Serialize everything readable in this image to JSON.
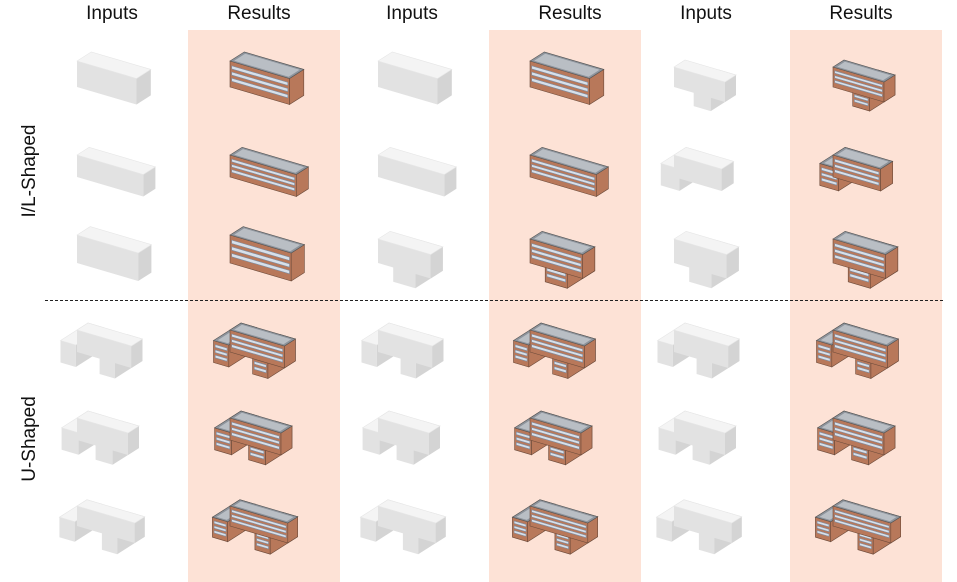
{
  "column_headers": [
    "Inputs",
    "Results",
    "Inputs",
    "Results",
    "Inputs",
    "Results"
  ],
  "row_groups": [
    {
      "label": "I/L-Shaped"
    },
    {
      "label": "U-Shaped"
    }
  ],
  "colors": {
    "results_panel": "#fde2d6",
    "mass_model_top": "#f4f4f4",
    "mass_model_left": "#e2e2e2",
    "mass_model_right": "#d4d4d4",
    "roof": "#8e949c",
    "roof_light": "#b9bec4",
    "brick_facade": "#b8785a",
    "window_band": "#d7e0ea",
    "divider": "#222222"
  },
  "grid": {
    "columns": [
      {
        "kind": "input",
        "group": 0
      },
      {
        "kind": "result",
        "group": 0
      },
      {
        "kind": "input",
        "group": 1
      },
      {
        "kind": "result",
        "group": 1
      },
      {
        "kind": "input",
        "group": 2
      },
      {
        "kind": "result",
        "group": 2
      }
    ],
    "rows": [
      {
        "group": "I/L-Shaped",
        "shapes": [
          "box",
          "box",
          "L"
        ]
      },
      {
        "group": "I/L-Shaped",
        "shapes": [
          "box",
          "box",
          "L"
        ]
      },
      {
        "group": "I/L-Shaped",
        "shapes": [
          "box",
          "L",
          "L"
        ]
      },
      {
        "group": "U-Shaped",
        "shapes": [
          "U",
          "U",
          "U"
        ]
      },
      {
        "group": "U-Shaped",
        "shapes": [
          "U",
          "U",
          "U"
        ]
      },
      {
        "group": "U-Shaped",
        "shapes": [
          "U",
          "U",
          "U"
        ]
      }
    ]
  }
}
